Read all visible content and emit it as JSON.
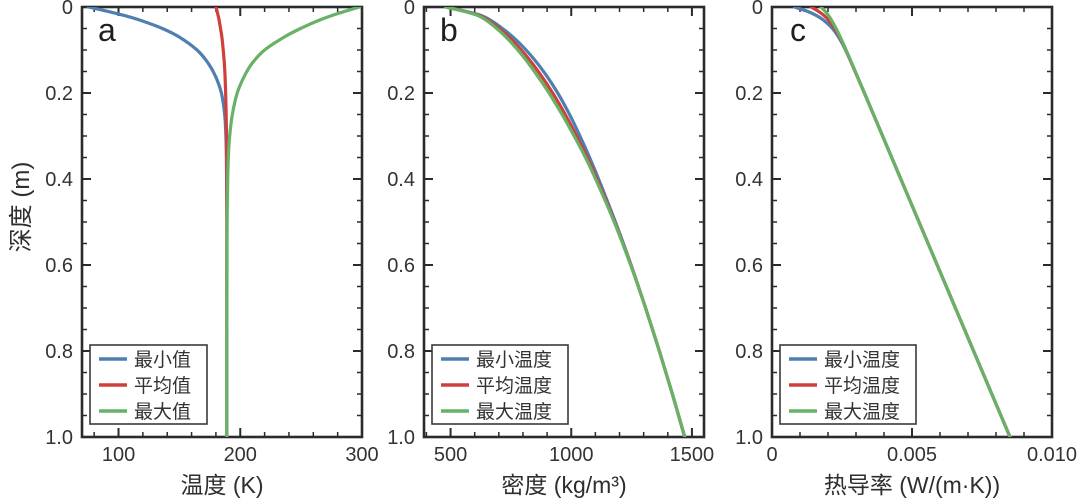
{
  "figure": {
    "ylabel": "深度 (m)",
    "background": "#ffffff",
    "frame_color": "#2b2b2b",
    "tick_color": "#2b2b2b",
    "text_color": "#333333",
    "depth_axis": {
      "range": [
        0,
        1.0
      ],
      "tick_values": [
        0,
        0.2,
        0.4,
        0.6,
        0.8,
        1.0
      ],
      "tick_labels": [
        "0",
        "0.2",
        "0.4",
        "0.6",
        "0.8",
        "1.0"
      ],
      "minor_step": 0.05
    }
  },
  "series_colors": {
    "blue": "#4e7fb0",
    "red": "#cf403c",
    "green": "#67b267"
  },
  "chart_data": [
    {
      "type": "line",
      "panel_label": "a",
      "xlabel": "温度 (K)",
      "ylabel": "深度 (m)",
      "xlim": [
        70,
        300
      ],
      "ylim": [
        1.0,
        0.0
      ],
      "grid": false,
      "legend_position": "lower left",
      "xticks": {
        "values": [
          100,
          200,
          300
        ],
        "labels": [
          "100",
          "200",
          "300"
        ],
        "minor_step": 20
      },
      "legend": [
        {
          "label": "最小值",
          "color_key": "blue"
        },
        {
          "label": "平均值",
          "color_key": "red"
        },
        {
          "label": "最大值",
          "color_key": "green"
        }
      ],
      "series": [
        {
          "name": "最小值",
          "color_key": "blue",
          "depth": [
            0,
            0.01,
            0.02,
            0.03,
            0.05,
            0.07,
            0.1,
            0.13,
            0.16,
            0.2,
            0.25,
            0.3,
            0.35,
            0.4,
            0.5,
            0.6,
            0.8,
            1.0
          ],
          "values": [
            75,
            91,
            105,
            117,
            136,
            150,
            164.5,
            173.5,
            179.5,
            184.5,
            187.2,
            188.2,
            188.6,
            188.8,
            189,
            189,
            189,
            189
          ]
        },
        {
          "name": "平均值",
          "color_key": "red",
          "depth": [
            0,
            0.01,
            0.02,
            0.03,
            0.05,
            0.07,
            0.1,
            0.13,
            0.16,
            0.2,
            0.25,
            0.3,
            0.35,
            0.4,
            0.5,
            0.6,
            0.8,
            1.0
          ],
          "values": [
            180,
            181,
            181.8,
            182.6,
            183.8,
            184.9,
            186,
            186.9,
            187.5,
            188,
            188.4,
            188.7,
            188.8,
            188.9,
            189,
            189,
            189,
            189
          ]
        },
        {
          "name": "最大值",
          "color_key": "green",
          "depth": [
            0,
            0.01,
            0.02,
            0.03,
            0.05,
            0.07,
            0.1,
            0.13,
            0.16,
            0.2,
            0.25,
            0.3,
            0.35,
            0.4,
            0.5,
            0.6,
            0.8,
            1.0
          ],
          "values": [
            298,
            286,
            275,
            265.5,
            249.5,
            236,
            220,
            210,
            203.5,
            197.5,
            193.5,
            191.3,
            190.2,
            189.7,
            189.2,
            189.1,
            189,
            189
          ]
        }
      ]
    },
    {
      "type": "line",
      "panel_label": "b",
      "xlabel": "密度 (kg/m³)",
      "ylabel": "深度 (m)",
      "xlim": [
        390,
        1550
      ],
      "ylim": [
        1.0,
        0.0
      ],
      "grid": false,
      "legend_position": "lower left",
      "xticks": {
        "values": [
          500,
          1000,
          1500
        ],
        "labels": [
          "500",
          "1000",
          "1500"
        ],
        "minor_step": 100
      },
      "legend": [
        {
          "label": "最小温度",
          "color_key": "blue"
        },
        {
          "label": "平均温度",
          "color_key": "red"
        },
        {
          "label": "最大温度",
          "color_key": "green"
        }
      ],
      "series": [
        {
          "name": "最小温度",
          "color_key": "blue",
          "depth": [
            0,
            0.02,
            0.05,
            0.08,
            0.12,
            0.16,
            0.2,
            0.25,
            0.3,
            0.35,
            0.4,
            0.5,
            0.6,
            0.7,
            0.8,
            0.9,
            1.0
          ],
          "values": [
            480,
            628,
            715,
            778,
            844,
            898,
            944,
            993,
            1036,
            1076,
            1113,
            1183,
            1248,
            1308,
            1365,
            1419,
            1470
          ]
        },
        {
          "name": "平均温度",
          "color_key": "red",
          "depth": [
            0,
            0.02,
            0.05,
            0.08,
            0.12,
            0.16,
            0.2,
            0.25,
            0.3,
            0.35,
            0.4,
            0.5,
            0.6,
            0.7,
            0.8,
            0.9,
            1.0
          ],
          "values": [
            480,
            620,
            701,
            760,
            823,
            876,
            923,
            975,
            1022,
            1066,
            1106,
            1180,
            1247,
            1308,
            1365,
            1419,
            1470
          ]
        },
        {
          "name": "最大温度",
          "color_key": "green",
          "depth": [
            0,
            0.02,
            0.05,
            0.08,
            0.12,
            0.16,
            0.2,
            0.25,
            0.3,
            0.35,
            0.4,
            0.5,
            0.6,
            0.7,
            0.8,
            0.9,
            1.0
          ],
          "values": [
            480,
            614,
            691,
            747,
            808,
            860,
            908,
            962,
            1012,
            1059,
            1101,
            1178,
            1246,
            1308,
            1365,
            1419,
            1470
          ]
        }
      ]
    },
    {
      "type": "line",
      "panel_label": "c",
      "xlabel": "热导率 (W/(m·K))",
      "ylabel": "深度 (m)",
      "xlim": [
        0,
        0.01
      ],
      "ylim": [
        1.0,
        0.0
      ],
      "grid": false,
      "legend_position": "lower left",
      "xticks": {
        "values": [
          0,
          0.005,
          0.01
        ],
        "labels": [
          "0",
          "0.005",
          "0.010"
        ],
        "minor_step": 0.001
      },
      "legend": [
        {
          "label": "最小温度",
          "color_key": "blue"
        },
        {
          "label": "平均温度",
          "color_key": "red"
        },
        {
          "label": "最大温度",
          "color_key": "green"
        }
      ],
      "series": [
        {
          "name": "最小温度",
          "color_key": "blue",
          "depth": [
            0,
            0.01,
            0.02,
            0.03,
            0.05,
            0.08,
            0.12,
            0.2,
            0.3,
            0.4,
            0.5,
            0.6,
            0.7,
            0.8,
            0.9,
            1.0
          ],
          "values": [
            0.0008,
            0.00126,
            0.00159,
            0.00183,
            0.00216,
            0.00247,
            0.00277,
            0.0033,
            0.00395,
            0.0046,
            0.00525,
            0.0059,
            0.00655,
            0.0072,
            0.00785,
            0.0085
          ]
        },
        {
          "name": "平均温度",
          "color_key": "red",
          "depth": [
            0,
            0.01,
            0.02,
            0.03,
            0.05,
            0.08,
            0.12,
            0.2,
            0.3,
            0.4,
            0.5,
            0.6,
            0.7,
            0.8,
            0.9,
            1.0
          ],
          "values": [
            0.0014,
            0.00166,
            0.00186,
            0.00201,
            0.00224,
            0.0025,
            0.00277,
            0.0033,
            0.00395,
            0.0046,
            0.00525,
            0.0059,
            0.00655,
            0.0072,
            0.00785,
            0.0085
          ]
        },
        {
          "name": "最大温度",
          "color_key": "green",
          "depth": [
            0,
            0.01,
            0.02,
            0.03,
            0.05,
            0.08,
            0.12,
            0.2,
            0.3,
            0.4,
            0.5,
            0.6,
            0.7,
            0.8,
            0.9,
            1.0
          ],
          "values": [
            0.00175,
            0.0019,
            0.00202,
            0.00212,
            0.00229,
            0.00251,
            0.00278,
            0.0033,
            0.00395,
            0.0046,
            0.00525,
            0.0059,
            0.00655,
            0.0072,
            0.00785,
            0.0085
          ]
        }
      ]
    }
  ]
}
